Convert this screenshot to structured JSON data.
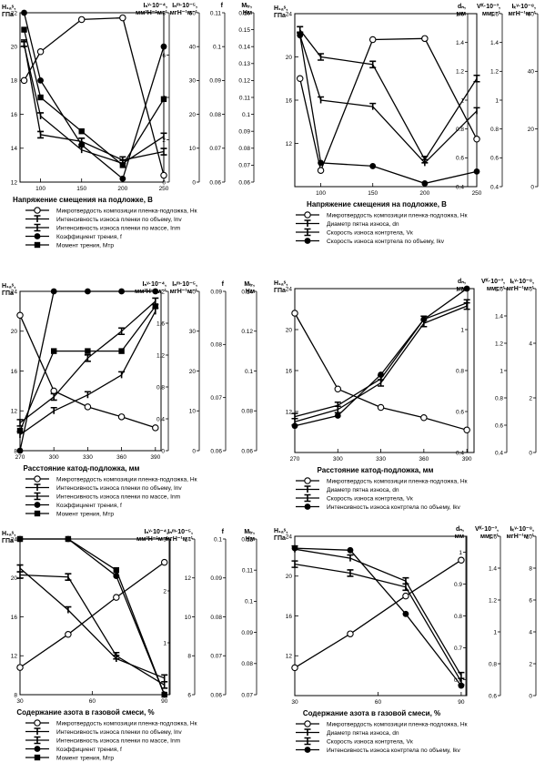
{
  "charts": [
    {
      "xlabel": "Напряжение смещения на подложке, В",
      "x_ticks": [
        100,
        150,
        200,
        250
      ],
      "xlim": [
        75,
        250
      ],
      "left_axis": {
        "label": "H₁ₐˢ,",
        "unit": "ГПа",
        "ticks": [
          12,
          14,
          16,
          18,
          20,
          22
        ],
        "ylim": [
          12,
          22
        ]
      },
      "right_axes": [
        {
          "label": "Iₙᵛ·10⁻⁴,",
          "unit": "мм³Н⁻¹м⁻¹",
          "ticks": [
            0,
            2,
            4,
            6,
            8
          ],
          "ylim": [
            0,
            8
          ]
        },
        {
          "label": "Iₙᵐ·10⁻⁵,",
          "unit": "мгН⁻¹м⁻¹",
          "ticks": [
            0,
            10,
            20,
            30,
            40,
            50
          ],
          "ylim": [
            0,
            50
          ]
        },
        {
          "label": "f",
          "unit": "",
          "ticks": [
            0.06,
            0.07,
            0.08,
            0.09,
            0.1,
            0.11
          ],
          "ylim": [
            0.06,
            0.11
          ]
        },
        {
          "label": "Mₜᵣ,",
          "unit": "Нм",
          "ticks": [
            0.06,
            0.07,
            0.08,
            0.09,
            0.1,
            0.11,
            0.12,
            0.13,
            0.14,
            0.15,
            0.16
          ],
          "ylim": [
            0.06,
            0.16
          ]
        }
      ],
      "series": [
        {
          "name": "Микротвердость композиции пленка-подложка, Нк",
          "marker": "open-circle",
          "x": [
            80,
            100,
            150,
            200,
            250
          ],
          "y": [
            18,
            19.7,
            21.6,
            21.7,
            12.4
          ]
        },
        {
          "name": "Интенсивность износа пленки по объему, Inv",
          "marker": "tbar",
          "x": [
            80,
            100,
            150,
            200,
            250
          ],
          "y": [
            20.1,
            15.9,
            13.9,
            13.1,
            14.7
          ]
        },
        {
          "name": "Интенсивность износа пленки по массе, Inm",
          "marker": "ibar",
          "x": [
            80,
            100,
            150,
            200,
            250
          ],
          "y": [
            20.2,
            14.8,
            14.4,
            13.3,
            13.8
          ]
        },
        {
          "name": "Коэффициент трения, f",
          "marker": "filled-circle",
          "x": [
            80,
            100,
            150,
            200,
            250
          ],
          "y": [
            22,
            18,
            14.2,
            12.2,
            20
          ]
        },
        {
          "name": "Момент трения, Мтр",
          "marker": "filled-square",
          "x": [
            80,
            100,
            150,
            200,
            250
          ],
          "y": [
            21,
            17,
            15,
            13,
            16.9
          ]
        }
      ]
    },
    {
      "xlabel": "Напряжение смещения на подложке, В",
      "x_ticks": [
        100,
        150,
        200,
        250
      ],
      "xlim": [
        75,
        250
      ],
      "left_axis": {
        "label": "H₁ₐˢ,",
        "unit": "ГПа",
        "ticks": [
          12,
          16,
          20,
          24
        ],
        "ylim": [
          8,
          24
        ]
      },
      "right_axes": [
        {
          "label": "dₙ,",
          "unit": "мм",
          "ticks": [
            0.4,
            0.6,
            0.8,
            1.0,
            1.2,
            1.4,
            1.6
          ],
          "ylim": [
            0.4,
            1.6
          ]
        },
        {
          "label": "Vᴷ·10⁻³,",
          "unit": "ммс⁻¹",
          "ticks": [
            0.4,
            0.6,
            0.8,
            1,
            1.2,
            1.4,
            1.6
          ],
          "ylim": [
            0.4,
            1.6
          ]
        },
        {
          "label": "Iₖᵛ·10⁻⁸,",
          "unit": "мгН⁻¹м⁻¹",
          "ticks": [
            0,
            20,
            40,
            60
          ],
          "ylim": [
            0,
            60
          ]
        }
      ],
      "series": [
        {
          "name": "Микротвердость композиции пленка-подложка, Нк",
          "marker": "open-circle",
          "x": [
            80,
            100,
            150,
            200,
            250
          ],
          "y": [
            18,
            9.5,
            21.6,
            21.7,
            12.4
          ]
        },
        {
          "name": "Диаметр пятна износа, dn",
          "marker": "tbar",
          "x": [
            80,
            100,
            150,
            200,
            250
          ],
          "y": [
            22,
            16,
            15.4,
            10.2,
            15
          ]
        },
        {
          "name": "Скорость износа контртела, Vк",
          "marker": "ibar",
          "x": [
            80,
            100,
            150,
            200,
            250
          ],
          "y": [
            22.5,
            20,
            19.3,
            10.5,
            18
          ]
        },
        {
          "name": "Скорость износа контртела по объему, Ikv",
          "marker": "filled-circle",
          "x": [
            80,
            100,
            150,
            200,
            250
          ],
          "y": [
            22,
            10.2,
            9.9,
            8.3,
            9.4
          ]
        }
      ]
    },
    {
      "xlabel": "Расстояние катод-подложка, мм",
      "x_ticks": [
        270,
        300,
        330,
        360,
        390
      ],
      "xlim": [
        270,
        395
      ],
      "left_axis": {
        "label": "H₁ₐˢ,",
        "unit": "ГПа",
        "ticks": [
          8,
          12,
          16,
          20,
          24
        ],
        "ylim": [
          8,
          24
        ]
      },
      "right_axes": [
        {
          "label": "Iₙᵛ·10⁻⁴,",
          "unit": "мм³Н⁻¹м⁻¹",
          "ticks": [
            0,
            0.4,
            0.8,
            1.2,
            1.6,
            2
          ],
          "ylim": [
            0,
            2
          ]
        },
        {
          "label": "Iₙᵐ·10⁻⁵,",
          "unit": "мгН⁻¹м⁻¹",
          "ticks": [
            0,
            10,
            20,
            30,
            40
          ],
          "ylim": [
            0,
            40
          ]
        },
        {
          "label": "f",
          "unit": "",
          "ticks": [
            0.06,
            0.07,
            0.08,
            0.09
          ],
          "ylim": [
            0.06,
            0.09
          ]
        },
        {
          "label": "Mₜᵣ,",
          "unit": "Нм",
          "ticks": [
            0.06,
            0.08,
            0.1,
            0.12,
            0.14
          ],
          "ylim": [
            0.06,
            0.14
          ]
        }
      ],
      "series": [
        {
          "name": "Микротвердость композиции пленка-подложка, Нк",
          "marker": "open-circle",
          "x": [
            270,
            300,
            330,
            360,
            390
          ],
          "y": [
            21.6,
            14,
            12.4,
            11.4,
            10.3
          ]
        },
        {
          "name": "Интенсивность износа пленки по объему, Inv",
          "marker": "tbar",
          "x": [
            270,
            300,
            330,
            360,
            390
          ],
          "y": [
            9.6,
            12,
            13.6,
            15.6,
            22
          ]
        },
        {
          "name": "Интенсивность износа пленки по массе, Inm",
          "marker": "ibar",
          "x": [
            270,
            300,
            330,
            360,
            390
          ],
          "y": [
            10.8,
            13.4,
            17.3,
            20,
            23
          ]
        },
        {
          "name": "Коэффициент трения, f",
          "marker": "filled-circle",
          "x": [
            270,
            300,
            330,
            360,
            390
          ],
          "y": [
            8,
            24,
            24,
            24,
            24
          ]
        },
        {
          "name": "Момент трения, Мтр",
          "marker": "filled-square",
          "x": [
            270,
            300,
            330,
            360,
            390
          ],
          "y": [
            10,
            18,
            18,
            18,
            22.5
          ]
        }
      ]
    },
    {
      "xlabel": "Расстояние катод-подложка, мм",
      "x_ticks": [
        270,
        300,
        330,
        360,
        390
      ],
      "xlim": [
        270,
        395
      ],
      "left_axis": {
        "label": "H₁ₐˢ,",
        "unit": "ГПа",
        "ticks": [
          12,
          16,
          20,
          24
        ],
        "ylim": [
          8,
          24
        ]
      },
      "right_axes": [
        {
          "label": "dₙ,",
          "unit": "мм",
          "ticks": [
            0.4,
            0.6,
            0.8,
            1,
            1.2
          ],
          "ylim": [
            0.4,
            1.2
          ]
        },
        {
          "label": "Vᴷ·10⁻³,",
          "unit": "ммс⁻¹",
          "ticks": [
            0.4,
            0.6,
            0.8,
            1.0,
            1.2,
            1.4,
            1.6
          ],
          "ylim": [
            0.4,
            1.6
          ]
        },
        {
          "label": "Iₖᵛ·10⁻⁸,",
          "unit": "мгН⁻¹м⁻¹",
          "ticks": [
            0,
            2,
            4,
            6
          ],
          "ylim": [
            0,
            6
          ]
        }
      ],
      "series": [
        {
          "name": "Микротвердость композиции пленка-подложка, Нк",
          "marker": "open-circle",
          "x": [
            270,
            300,
            330,
            360,
            390
          ],
          "y": [
            21.6,
            14.2,
            12.4,
            11.4,
            10.2
          ]
        },
        {
          "name": "Диаметр пятна износа, dn",
          "marker": "tbar",
          "x": [
            270,
            300,
            330,
            360,
            390
          ],
          "y": [
            11.5,
            12.6,
            15.2,
            21,
            22.6
          ]
        },
        {
          "name": "Скорость износа контртела, Vк",
          "marker": "ibar",
          "x": [
            270,
            300,
            330,
            360,
            390
          ],
          "y": [
            11,
            12.2,
            14.8,
            20.6,
            22.3
          ]
        },
        {
          "name": "Интенсивность износа контртела по объему, Ikv",
          "marker": "filled-circle",
          "x": [
            270,
            300,
            330,
            360,
            390
          ],
          "y": [
            10.6,
            11.6,
            15.6,
            21,
            24
          ]
        }
      ]
    },
    {
      "xlabel": "Содержание азота в газовой смеси, %",
      "x_ticks": [
        30,
        60,
        90
      ],
      "xlim": [
        30,
        92
      ],
      "left_axis": {
        "label": "H₁ₐˢ,",
        "unit": "ГПа",
        "ticks": [
          8,
          12,
          16,
          20,
          24
        ],
        "ylim": [
          8,
          24
        ]
      },
      "right_axes": [
        {
          "label": "Iₙᵛ·10⁻⁴,",
          "unit": "мм³Н⁻¹м⁻¹",
          "ticks": [
            0,
            1,
            2,
            3
          ],
          "ylim": [
            0,
            3
          ]
        },
        {
          "label": "Iₙᵐ·10⁻⁵,",
          "unit": "мгН⁻¹м⁻¹",
          "ticks": [
            6,
            8,
            10,
            12,
            14
          ],
          "ylim": [
            6,
            14
          ]
        },
        {
          "label": "f",
          "unit": "",
          "ticks": [
            0.06,
            0.07,
            0.08,
            0.09,
            0.1
          ],
          "ylim": [
            0.06,
            0.1
          ]
        },
        {
          "label": "Mₜᵣ,",
          "unit": "Нм",
          "ticks": [
            0.07,
            0.08,
            0.09,
            0.1,
            0.11,
            0.12
          ],
          "ylim": [
            0.07,
            0.12
          ]
        }
      ],
      "series": [
        {
          "name": "Микротвердость композиции пленка-подложка, Нк",
          "marker": "open-circle",
          "x": [
            30,
            50,
            70,
            90
          ],
          "y": [
            10.8,
            14.2,
            18,
            21.6
          ]
        },
        {
          "name": "Интенсивность износа пленки по объему, Inv",
          "marker": "tbar",
          "x": [
            30,
            50,
            70,
            90
          ],
          "y": [
            21,
            16.7,
            11.7,
            9.7
          ]
        },
        {
          "name": "Интенсивность износа пленки по массе, Inm",
          "marker": "ibar",
          "x": [
            30,
            50,
            70,
            90
          ],
          "y": [
            20.3,
            20.1,
            12,
            9
          ]
        },
        {
          "name": "Коэффициент трения, f",
          "marker": "filled-circle",
          "x": [
            30,
            50,
            70,
            90
          ],
          "y": [
            24,
            24,
            20.2,
            8
          ]
        },
        {
          "name": "Момент трения, Мтр",
          "marker": "filled-square",
          "x": [
            30,
            50,
            70,
            90
          ],
          "y": [
            24,
            24,
            20.8,
            8
          ]
        }
      ]
    },
    {
      "xlabel": "Содержание азота в газовой смеси, %",
      "x_ticks": [
        30,
        60,
        90
      ],
      "xlim": [
        30,
        92
      ],
      "left_axis": {
        "label": "H₁ₐˢ,",
        "unit": "ГПа",
        "ticks": [
          12,
          16,
          20,
          24
        ],
        "ylim": [
          8,
          24
        ]
      },
      "right_axes": [
        {
          "label": "dₙ,",
          "unit": "мм",
          "ticks": [
            0.6,
            0.7,
            0.8,
            0.9,
            1
          ],
          "ylim": [
            0.55,
            1.05
          ]
        },
        {
          "label": "Vᴷ·10⁻³,",
          "unit": "ммс⁻¹",
          "ticks": [
            0.6,
            0.8,
            1.0,
            1.2,
            1.4,
            1.6
          ],
          "ylim": [
            0.6,
            1.6
          ]
        },
        {
          "label": "Iₖᵛ·10⁻⁸,",
          "unit": "мгН⁻¹м⁻¹",
          "ticks": [
            0,
            2,
            4,
            6,
            8,
            10
          ],
          "ylim": [
            0,
            10
          ]
        }
      ],
      "series": [
        {
          "name": "Микротвердость композиции пленка-подложка, Нк",
          "marker": "open-circle",
          "x": [
            30,
            50,
            70,
            90
          ],
          "y": [
            10.8,
            14.2,
            18,
            21.6
          ]
        },
        {
          "name": "Диаметр пятна износа, dn",
          "marker": "tbar",
          "x": [
            30,
            50,
            70,
            90
          ],
          "y": [
            22.7,
            21.8,
            19.5,
            10
          ]
        },
        {
          "name": "Скорость износа контртела, Vк",
          "marker": "ibar",
          "x": [
            30,
            50,
            70,
            90
          ],
          "y": [
            21.2,
            20.3,
            18.9,
            9.4
          ]
        },
        {
          "name": "Интенсивность износа контртела по объему, Ikv",
          "marker": "filled-circle",
          "x": [
            30,
            50,
            70,
            90
          ],
          "y": [
            22.8,
            22.6,
            16.2,
            9
          ]
        }
      ]
    }
  ]
}
